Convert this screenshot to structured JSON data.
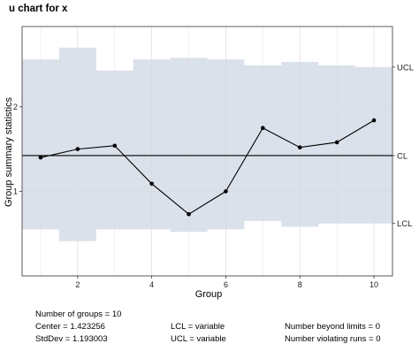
{
  "chart_data": {
    "type": "line",
    "title": "u chart for x",
    "xlabel": "Group",
    "ylabel": "Group summary statistics",
    "x": [
      1,
      2,
      3,
      4,
      5,
      6,
      7,
      8,
      9,
      10
    ],
    "xlim": [
      0.5,
      10.5
    ],
    "ylim": [
      0.0,
      2.95
    ],
    "x_ticks": [
      2,
      4,
      6,
      8,
      10
    ],
    "x_tick_labels": [
      "2",
      "4",
      "6",
      "8",
      "10"
    ],
    "y_ticks": [
      1,
      2
    ],
    "y_tick_labels": [
      "1",
      "2"
    ],
    "grid": true,
    "series": [
      {
        "values": [
          1.4,
          1.5,
          1.54,
          1.09,
          0.73,
          1.0,
          1.75,
          1.52,
          1.58,
          1.84
        ]
      }
    ],
    "center": 1.423256,
    "ucl": [
      2.56,
      2.7,
      2.43,
      2.56,
      2.58,
      2.56,
      2.49,
      2.53,
      2.49,
      2.47
    ],
    "lcl": [
      0.55,
      0.41,
      0.55,
      0.55,
      0.52,
      0.55,
      0.65,
      0.58,
      0.62,
      0.62
    ],
    "limit_labels": {
      "ucl": "UCL",
      "cl": "CL",
      "lcl": "LCL"
    },
    "colors": {
      "panel_background": "#ffffff",
      "limits_band": "#dbe1ea",
      "grid": "#d8d8d8",
      "line": "#000000",
      "border": "#333333"
    }
  },
  "summary": {
    "groups": "Number of groups = 10",
    "center": "Center = 1.423256",
    "stddev": "StdDev = 1.193003",
    "lcl": "LCL = variable",
    "ucl": "UCL = variable",
    "beyond": "Number beyond limits = 0",
    "violating": "Number violating runs = 0"
  }
}
